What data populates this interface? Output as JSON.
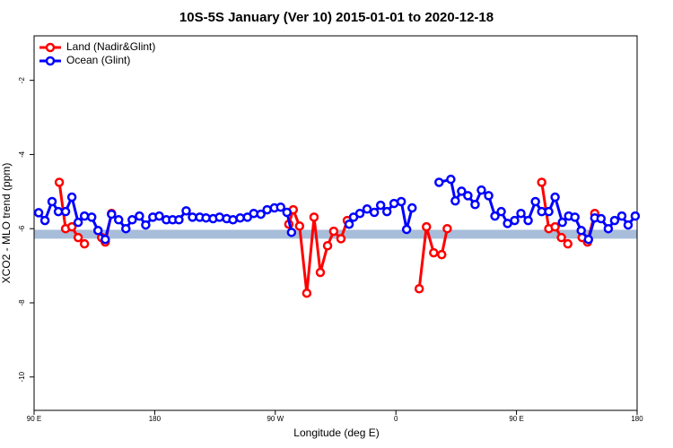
{
  "chart_data": {
    "type": "line",
    "title": "10S-5S January (Ver 10)   2015-01-01 to 2020-12-18",
    "x_label": "Longitude (deg E)",
    "y_label": "XCO2 - MLO trend (ppm)",
    "xlim": [
      90,
      540
    ],
    "xticks": [
      {
        "value": 90,
        "label": "90 E"
      },
      180,
      {
        "value": 270,
        "label": "90 W"
      },
      {
        "value": 360,
        "label": "0"
      },
      {
        "value": 450,
        "label": "90 E"
      },
      {
        "value": 540,
        "label": "180"
      }
    ],
    "ylim": [
      -10.9,
      -0.8
    ],
    "yticks": [
      -2,
      -4,
      -6,
      -8,
      -10
    ],
    "legend": "topleft",
    "band": {
      "ymin": -6.27,
      "ymax": -6.03,
      "color": "#a7bdd9"
    },
    "series": [
      {
        "name": "Land (Nadir&Glint)",
        "color": "#ff0000",
        "x": [
          108.8,
          113.5,
          118.2,
          122.9,
          127.6,
          null,
          140.4,
          143.1,
          147.8,
          null,
          280.1,
          283.4,
          288.1,
          293.5,
          298.9,
          303.6,
          309.0,
          313.6,
          319.0,
          323.7,
          null,
          377.4,
          382.8,
          388.2,
          394.2,
          398.3,
          null,
          468.8,
          474.1,
          478.8,
          483.5,
          488.3,
          null,
          499.0,
          503.0,
          508.4
        ],
        "values": [
          -4.75,
          -6.0,
          -5.95,
          -6.24,
          -6.41,
          null,
          -6.24,
          -6.36,
          -5.59,
          null,
          -5.88,
          -5.49,
          -5.93,
          -7.74,
          -5.69,
          -7.18,
          -6.46,
          -6.07,
          -6.27,
          -5.78,
          null,
          -7.62,
          -5.95,
          -6.65,
          -6.7,
          -6.0,
          null,
          -4.75,
          -6.0,
          -5.95,
          -6.24,
          -6.41,
          null,
          -6.24,
          -6.36,
          -5.59
        ]
      },
      {
        "name": "Ocean (Glint)",
        "color": "#0000ff",
        "x": [
          93.4,
          98.1,
          103.4,
          108.1,
          113.5,
          118.2,
          122.9,
          127.6,
          133.0,
          137.7,
          143.1,
          147.8,
          153.1,
          158.5,
          163.2,
          168.6,
          173.3,
          178.6,
          183.4,
          188.7,
          193.4,
          198.1,
          203.5,
          208.2,
          213.6,
          218.3,
          223.6,
          228.4,
          233.7,
          238.4,
          243.8,
          249.2,
          253.9,
          259.2,
          263.9,
          269.3,
          274.0,
          278.7,
          282.1,
          null,
          325.1,
          328.4,
          333.1,
          338.5,
          343.9,
          348.6,
          353.3,
          358.6,
          364.0,
          368.0,
          372.1,
          null,
          392.2,
          401.0,
          404.3,
          409.0,
          413.7,
          419.1,
          423.8,
          429.2,
          433.9,
          438.6,
          443.3,
          448.6,
          453.3,
          458.7,
          464.1,
          468.8,
          474.1,
          478.8,
          484.2,
          488.9,
          493.6,
          498.3,
          503.7,
          508.4,
          513.1,
          518.5,
          523.2,
          528.6,
          533.3,
          538.6
        ],
        "values": [
          -5.57,
          -5.78,
          -5.27,
          -5.54,
          -5.54,
          -5.15,
          -5.83,
          -5.66,
          -5.69,
          -6.05,
          -6.29,
          -5.61,
          -5.76,
          -6.0,
          -5.76,
          -5.66,
          -5.9,
          -5.69,
          -5.66,
          -5.76,
          -5.76,
          -5.76,
          -5.52,
          -5.69,
          -5.69,
          -5.71,
          -5.73,
          -5.69,
          -5.73,
          -5.76,
          -5.71,
          -5.69,
          -5.59,
          -5.61,
          -5.49,
          -5.44,
          -5.42,
          -5.56,
          -6.1,
          null,
          -5.88,
          -5.69,
          -5.59,
          -5.47,
          -5.56,
          -5.37,
          -5.54,
          -5.32,
          -5.27,
          -6.02,
          -5.44,
          null,
          -4.75,
          -4.67,
          -5.25,
          -4.99,
          -5.11,
          -5.35,
          -4.96,
          -5.11,
          -5.66,
          -5.54,
          -5.86,
          -5.78,
          -5.59,
          -5.78,
          -5.27,
          -5.54,
          -5.54,
          -5.15,
          -5.83,
          -5.66,
          -5.69,
          -6.05,
          -6.29,
          -5.71,
          -5.73,
          -6.0,
          -5.78,
          -5.66,
          -5.9,
          -5.66
        ]
      }
    ]
  }
}
